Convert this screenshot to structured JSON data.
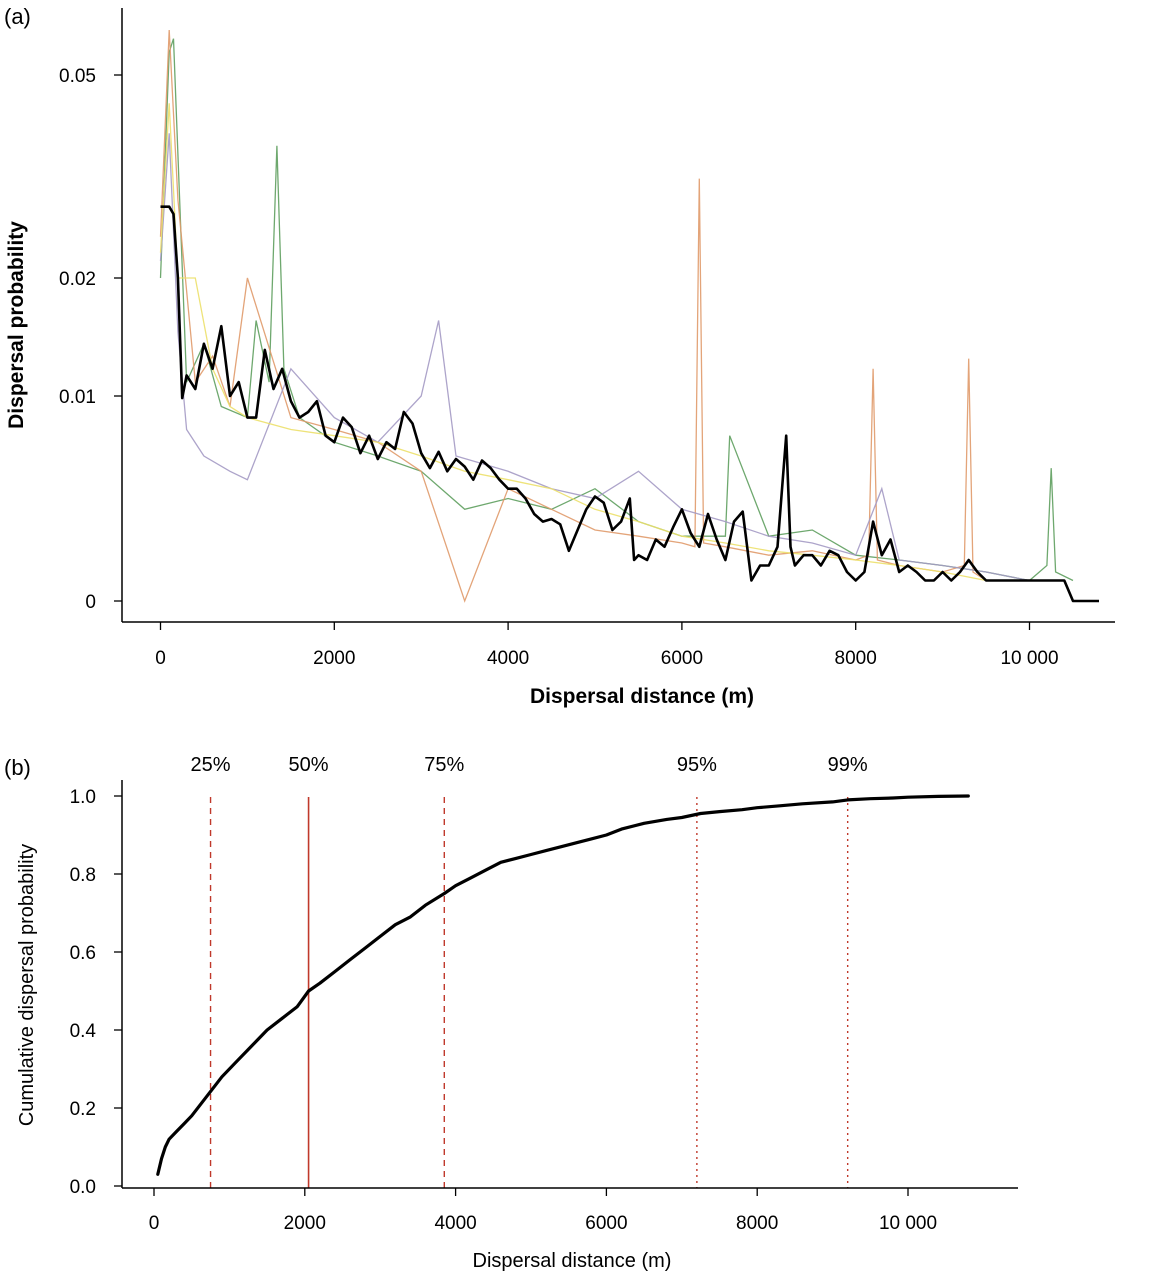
{
  "chart_data": [
    {
      "panel": "(a)",
      "type": "line",
      "xlabel": "Dispersal distance (m)",
      "ylabel": "Dispersal probability",
      "xlim": [
        -400,
        11300
      ],
      "ylim": [
        0,
        0.06
      ],
      "y_scale": "pseudo-log",
      "xticks": [
        0,
        2000,
        4000,
        6000,
        8000,
        10000
      ],
      "xtick_labels": [
        "0",
        "2000",
        "4000",
        "6000",
        "8000",
        "10 000"
      ],
      "yticks": [
        0,
        0.01,
        0.02,
        0.05
      ],
      "ytick_labels": [
        "0",
        "0.01",
        "0.02",
        "0.05"
      ],
      "grid": false,
      "colors": {
        "mean": "#000000",
        "green": "#5e9e5e",
        "orange": "#e09a6a",
        "purple": "#a49ac4",
        "yellow": "#ece06a"
      },
      "background_series": [
        {
          "color": "green",
          "x": [
            0,
            100,
            150,
            300,
            500,
            700,
            1000,
            1100,
            1250,
            1340,
            1420,
            1600,
            2000,
            2500,
            3000,
            3500,
            4000,
            4500,
            5000,
            5500,
            6000,
            6500,
            6550,
            7000,
            7500,
            8000,
            8500,
            9000,
            9500,
            10000,
            10200,
            10250,
            10300,
            10500
          ],
          "y": [
            0.02,
            0.055,
            0.058,
            0.011,
            0.014,
            0.009,
            0.008,
            0.016,
            0.011,
            0.038,
            0.012,
            0.008,
            0.006,
            0.005,
            0.004,
            0.002,
            0.0025,
            0.002,
            0.003,
            0.0015,
            0.001,
            0.001,
            0.0065,
            0.001,
            0.0012,
            0.0005,
            0.0004,
            0.0003,
            0.0002,
            0.0001,
            0.0003,
            0.0042,
            0.0002,
            0.0001
          ]
        },
        {
          "color": "orange",
          "x": [
            0,
            100,
            200,
            400,
            600,
            800,
            1000,
            1500,
            2000,
            2500,
            3000,
            3500,
            4000,
            4500,
            5000,
            5500,
            6000,
            6150,
            6200,
            6250,
            6500,
            7000,
            7500,
            8000,
            8150,
            8200,
            8250,
            8500,
            9000,
            9250,
            9300,
            9350,
            9500,
            10000
          ],
          "y": [
            0.025,
            0.06,
            0.03,
            0.011,
            0.013,
            0.009,
            0.02,
            0.008,
            0.007,
            0.006,
            0.004,
            0.0,
            0.003,
            0.002,
            0.0012,
            0.001,
            0.0008,
            0.0007,
            0.033,
            0.0008,
            0.0007,
            0.0005,
            0.0006,
            0.0004,
            0.0005,
            0.012,
            0.0004,
            0.0003,
            0.0002,
            0.0003,
            0.0128,
            0.0002,
            0.0001,
            0.0001
          ]
        },
        {
          "color": "purple",
          "x": [
            0,
            100,
            200,
            300,
            500,
            800,
            1000,
            1500,
            2000,
            2500,
            3000,
            3200,
            3400,
            4000,
            4500,
            5000,
            5500,
            6000,
            6500,
            7000,
            7500,
            8000,
            8300,
            8500,
            9000,
            9500,
            10000
          ],
          "y": [
            0.022,
            0.04,
            0.015,
            0.007,
            0.005,
            0.004,
            0.0035,
            0.012,
            0.008,
            0.006,
            0.01,
            0.016,
            0.005,
            0.004,
            0.003,
            0.0025,
            0.004,
            0.002,
            0.0015,
            0.001,
            0.0008,
            0.0005,
            0.003,
            0.0004,
            0.0003,
            0.0002,
            0.0001
          ]
        },
        {
          "color": "yellow",
          "x": [
            0,
            100,
            200,
            400,
            600,
            800,
            1000,
            1500,
            2000,
            2500,
            3000,
            3500,
            4000,
            4500,
            5000,
            5500,
            6000,
            6500,
            7000,
            7500,
            8000,
            8500,
            9000,
            9500,
            10000
          ],
          "y": [
            0.023,
            0.045,
            0.02,
            0.02,
            0.012,
            0.009,
            0.008,
            0.007,
            0.0065,
            0.006,
            0.005,
            0.004,
            0.0035,
            0.003,
            0.002,
            0.0015,
            0.001,
            0.0008,
            0.0006,
            0.0005,
            0.0004,
            0.0003,
            0.0002,
            0.0001,
            0.0001
          ]
        }
      ],
      "mean_series": {
        "x": [
          0,
          100,
          150,
          200,
          250,
          300,
          400,
          500,
          600,
          700,
          800,
          900,
          1000,
          1100,
          1200,
          1300,
          1400,
          1500,
          1600,
          1700,
          1800,
          1900,
          2000,
          2100,
          2200,
          2300,
          2400,
          2500,
          2600,
          2700,
          2800,
          2900,
          3000,
          3100,
          3200,
          3300,
          3400,
          3500,
          3600,
          3700,
          3800,
          3900,
          4000,
          4100,
          4200,
          4300,
          4400,
          4500,
          4600,
          4700,
          4800,
          4900,
          5000,
          5100,
          5200,
          5300,
          5400,
          5450,
          5500,
          5600,
          5700,
          5800,
          5900,
          6000,
          6100,
          6200,
          6300,
          6400,
          6500,
          6600,
          6700,
          6800,
          6900,
          7000,
          7100,
          7200,
          7250,
          7300,
          7400,
          7500,
          7600,
          7700,
          7800,
          7900,
          8000,
          8100,
          8200,
          8300,
          8400,
          8500,
          8600,
          8700,
          8800,
          8900,
          9000,
          9100,
          9200,
          9300,
          9400,
          9500,
          9600,
          9700,
          9800,
          9900,
          10000,
          10100,
          10200,
          10300,
          10400,
          10500,
          10600,
          10700,
          10800
        ],
        "y": [
          0.029,
          0.029,
          0.028,
          0.02,
          0.0098,
          0.0115,
          0.0105,
          0.014,
          0.012,
          0.0155,
          0.01,
          0.011,
          0.008,
          0.008,
          0.0135,
          0.0105,
          0.012,
          0.0095,
          0.008,
          0.0085,
          0.0095,
          0.0065,
          0.006,
          0.008,
          0.0072,
          0.0052,
          0.0065,
          0.0048,
          0.006,
          0.0055,
          0.0085,
          0.0075,
          0.0052,
          0.0042,
          0.0053,
          0.004,
          0.0048,
          0.0043,
          0.0035,
          0.0047,
          0.0042,
          0.0035,
          0.003,
          0.003,
          0.0025,
          0.0018,
          0.0015,
          0.0016,
          0.0014,
          0.0006,
          0.0012,
          0.002,
          0.0026,
          0.0023,
          0.0012,
          0.0015,
          0.0025,
          0.0004,
          0.0005,
          0.0004,
          0.0009,
          0.0007,
          0.0013,
          0.002,
          0.0011,
          0.0007,
          0.0018,
          0.0009,
          0.0004,
          0.0015,
          0.0019,
          0.0001,
          0.0003,
          0.0003,
          0.0007,
          0.0065,
          0.0007,
          0.0003,
          0.0005,
          0.0005,
          0.0003,
          0.0006,
          0.0005,
          0.0002,
          0.0001,
          0.0002,
          0.0015,
          0.0005,
          0.0009,
          0.0002,
          0.0003,
          0.0002,
          0.0001,
          0.0001,
          0.0002,
          0.0001,
          0.0002,
          0.0004,
          0.0002,
          0.0001,
          0.0001,
          0.0001,
          0.0001,
          0.0001,
          0.0001,
          0.0001,
          0.0001,
          0.0001,
          0.0001,
          0.0,
          0.0,
          0.0,
          0.0
        ]
      }
    },
    {
      "panel": "(b)",
      "type": "line",
      "xlabel": "Dispersal distance (m)",
      "ylabel": "Cumulative dispersal probability",
      "xlim": [
        -450,
        11700
      ],
      "ylim": [
        0,
        1.0
      ],
      "xticks": [
        0,
        2000,
        4000,
        6000,
        8000,
        10000
      ],
      "xtick_labels": [
        "0",
        "2000",
        "4000",
        "6000",
        "8000",
        "10 000"
      ],
      "yticks": [
        0.0,
        0.2,
        0.4,
        0.6,
        0.8,
        1.0
      ],
      "ytick_labels": [
        "0.0",
        "0.2",
        "0.4",
        "0.6",
        "0.8",
        "1.0"
      ],
      "grid": false,
      "series": [
        {
          "x": [
            50,
            100,
            150,
            200,
            300,
            400,
            500,
            700,
            900,
            1100,
            1300,
            1500,
            1700,
            1900,
            2050,
            2200,
            2400,
            2600,
            2800,
            3000,
            3200,
            3400,
            3600,
            3850,
            4000,
            4200,
            4400,
            4600,
            4800,
            5000,
            5200,
            5400,
            5600,
            5800,
            6000,
            6200,
            6500,
            6800,
            7000,
            7250,
            7500,
            7800,
            8000,
            8300,
            8600,
            9000,
            9200,
            9500,
            9800,
            10000,
            10400,
            10800
          ],
          "y": [
            0.03,
            0.07,
            0.1,
            0.12,
            0.14,
            0.16,
            0.18,
            0.23,
            0.28,
            0.32,
            0.36,
            0.4,
            0.43,
            0.46,
            0.5,
            0.52,
            0.55,
            0.58,
            0.61,
            0.64,
            0.67,
            0.69,
            0.72,
            0.75,
            0.77,
            0.79,
            0.81,
            0.83,
            0.84,
            0.85,
            0.86,
            0.87,
            0.88,
            0.89,
            0.9,
            0.915,
            0.93,
            0.94,
            0.945,
            0.955,
            0.96,
            0.965,
            0.97,
            0.975,
            0.98,
            0.985,
            0.99,
            0.993,
            0.995,
            0.997,
            0.999,
            1.0
          ]
        }
      ],
      "percentiles": [
        {
          "label": "25%",
          "x": 750,
          "style": "dashed"
        },
        {
          "label": "50%",
          "x": 2050,
          "style": "solid"
        },
        {
          "label": "75%",
          "x": 3850,
          "style": "dashed"
        },
        {
          "label": "95%",
          "x": 7200,
          "style": "dotted"
        },
        {
          "label": "99%",
          "x": 9200,
          "style": "dotted"
        }
      ],
      "colors": {
        "curve": "#000000",
        "percentile_line": "#c0392b"
      }
    }
  ]
}
